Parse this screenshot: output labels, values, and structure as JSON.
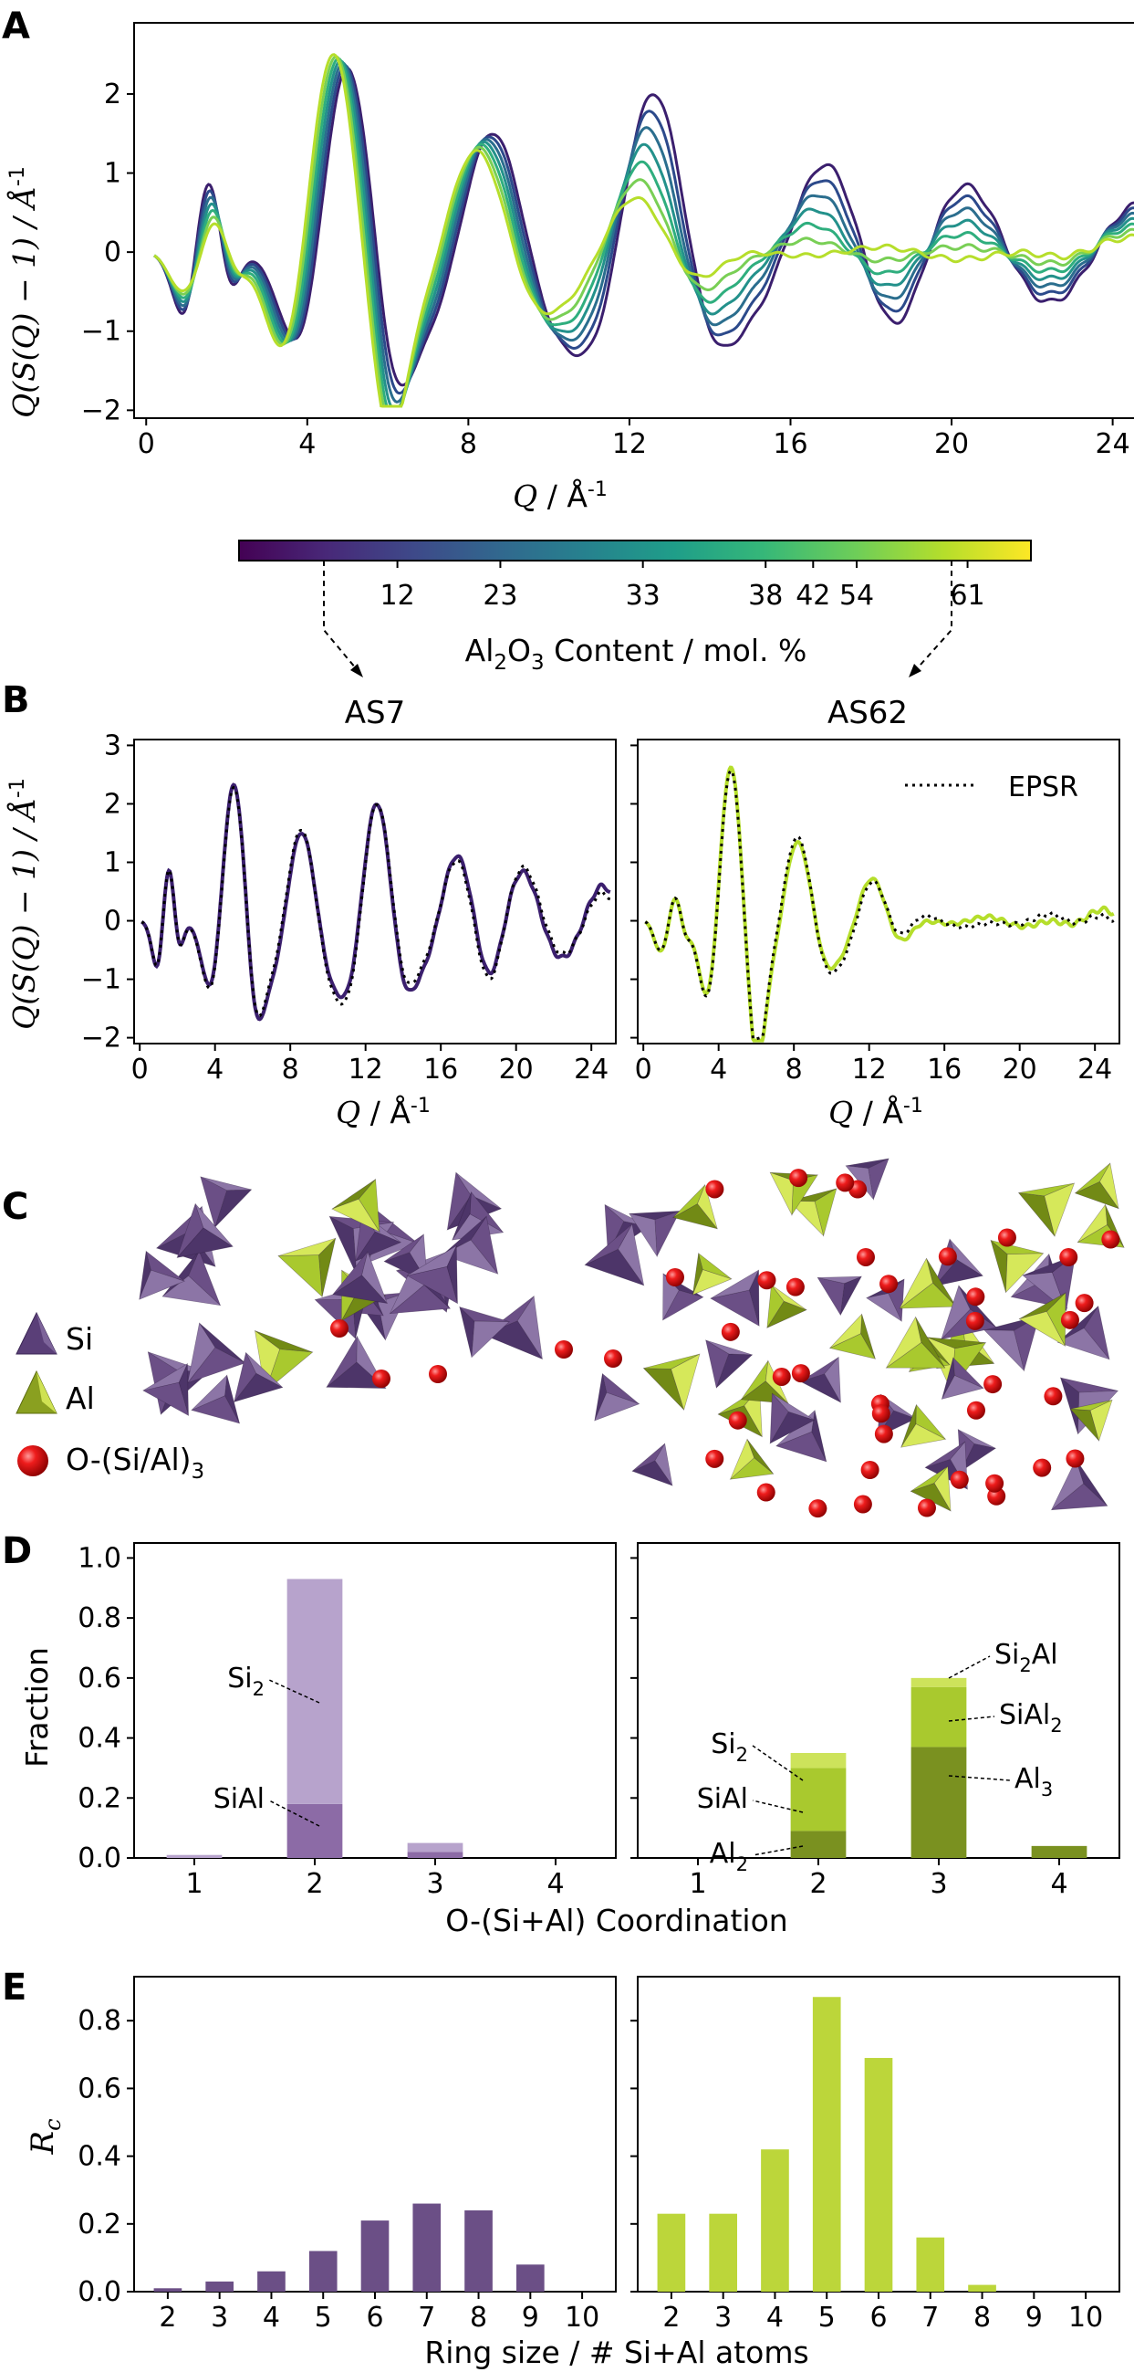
{
  "panels": {
    "a": {
      "letter": "A"
    },
    "b": {
      "letter": "B",
      "left_title": "AS7",
      "right_title": "AS62"
    },
    "c": {
      "letter": "C"
    },
    "d": {
      "letter": "D"
    },
    "e": {
      "letter": "E"
    }
  },
  "colorbar": {
    "ticks": [
      "12",
      "23",
      "33",
      "38",
      "42",
      "54",
      "61"
    ],
    "label_pre": "Al",
    "label_sub": "2",
    "label_mid": "O",
    "label_sub2": "3",
    "label_post": " Content / mol. %",
    "colors": [
      "#440154",
      "#482878",
      "#3e4989",
      "#31688e",
      "#26828e",
      "#1f9e89",
      "#35b779",
      "#6ece58",
      "#b5de2b",
      "#fde725"
    ]
  },
  "legend_c": {
    "si": "Si",
    "al": "Al",
    "o_pre": "O-(Si/Al)",
    "o_sub": "3",
    "si_color": "#6b4f86",
    "al_color": "#bcd63a",
    "o_color": "#e01010"
  },
  "chart_data": [
    {
      "panel": "A",
      "type": "line",
      "xlabel": "Q / Å-1",
      "ylabel": "Q(S(Q) − 1) / Å-1",
      "xlim": [
        -0.3,
        25.3
      ],
      "ylim": [
        -2.1,
        2.9
      ],
      "xticks": [
        "0",
        "4",
        "8",
        "12",
        "16",
        "20",
        "24"
      ],
      "yticks": [
        "−2",
        "−1",
        "0",
        "1",
        "2"
      ],
      "series_colors": [
        "#3b1f6e",
        "#2c4a8b",
        "#2b6e8e",
        "#23918b",
        "#2fae7e",
        "#79cf55",
        "#b6de2b"
      ],
      "series_compositions_mol_pct": [
        7,
        12,
        23,
        33,
        42,
        54,
        62
      ],
      "peaks_q": [
        1.5,
        4.7,
        8.3,
        12.4,
        16.8,
        20.4,
        24.6
      ]
    },
    {
      "panel": "B-left",
      "type": "line",
      "title": "AS7",
      "xlabel": "Q / Å-1",
      "ylabel": "Q(S(Q) − 1) / Å-1",
      "xlim": [
        -0.3,
        25.3
      ],
      "ylim": [
        -2.1,
        3.1
      ],
      "xticks": [
        "0",
        "4",
        "8",
        "12",
        "16",
        "20",
        "24"
      ],
      "yticks": [
        "−2",
        "−1",
        "0",
        "1",
        "2",
        "3"
      ],
      "series": [
        {
          "name": "",
          "color": "#3b1f6e"
        },
        {
          "name": "EPSR",
          "style": "dotted"
        }
      ]
    },
    {
      "panel": "B-right",
      "type": "line",
      "title": "AS62",
      "xlabel": "Q / Å-1",
      "xlim": [
        -0.3,
        25.3
      ],
      "ylim": [
        -2.1,
        3.1
      ],
      "xticks": [
        "0",
        "4",
        "8",
        "12",
        "16",
        "20",
        "24"
      ],
      "legend": "EPSR",
      "series": [
        {
          "name": "",
          "color": "#b5de2b"
        },
        {
          "name": "EPSR",
          "style": "dotted"
        }
      ]
    },
    {
      "panel": "D-left",
      "type": "bar",
      "xlabel": "O-(Si+Al) Coordination",
      "ylabel": "Fraction",
      "categories": [
        "1",
        "2",
        "3",
        "4"
      ],
      "ylim": [
        0,
        1.05
      ],
      "yticks": [
        "0.0",
        "0.2",
        "0.4",
        "0.6",
        "0.8",
        "1.0"
      ],
      "series": [
        {
          "name": "SiAl",
          "values": [
            0.0,
            0.18,
            0.02,
            0.0
          ]
        },
        {
          "name": "Si2",
          "values": [
            0.01,
            0.75,
            0.03,
            0.0
          ]
        }
      ],
      "annotations": [
        {
          "text_pre": "Si",
          "text_sub": "2",
          "text_post": ""
        },
        {
          "text_pre": "SiAl",
          "text_sub": "",
          "text_post": ""
        }
      ]
    },
    {
      "panel": "D-right",
      "type": "bar",
      "categories": [
        "1",
        "2",
        "3",
        "4"
      ],
      "ylim": [
        0,
        1.05
      ],
      "series": [
        {
          "name": "Al2 / Al3",
          "values": [
            0.0,
            0.09,
            0.37,
            0.04
          ]
        },
        {
          "name": "SiAl / SiAl2",
          "values": [
            0.0,
            0.21,
            0.2,
            0.0
          ]
        },
        {
          "name": "Si2 / Si2Al",
          "values": [
            0.0,
            0.05,
            0.03,
            0.0
          ]
        }
      ],
      "annotations": [
        {
          "text_pre": "Si",
          "text_sub": "2",
          "text_post": ""
        },
        {
          "text_pre": "SiAl",
          "text_sub": "",
          "text_post": ""
        },
        {
          "text_pre": "Al",
          "text_sub": "2",
          "text_post": ""
        },
        {
          "text_pre": "Si",
          "text_sub": "2",
          "text_post": "Al"
        },
        {
          "text_pre": "SiAl",
          "text_sub": "2",
          "text_post": ""
        },
        {
          "text_pre": "Al",
          "text_sub": "3",
          "text_post": ""
        }
      ]
    },
    {
      "panel": "E-left",
      "type": "bar",
      "xlabel": "Ring size / # Si+Al atoms",
      "ylabel": "Rc",
      "categories": [
        "2",
        "3",
        "4",
        "5",
        "6",
        "7",
        "8",
        "9",
        "10"
      ],
      "values": [
        0.01,
        0.03,
        0.06,
        0.12,
        0.21,
        0.26,
        0.24,
        0.08,
        0.0
      ],
      "ylim": [
        0,
        0.93
      ],
      "yticks": [
        "0.0",
        "0.2",
        "0.4",
        "0.6",
        "0.8"
      ],
      "color": "#6b4f86"
    },
    {
      "panel": "E-right",
      "type": "bar",
      "categories": [
        "2",
        "3",
        "4",
        "5",
        "6",
        "7",
        "8",
        "9",
        "10"
      ],
      "values": [
        0.23,
        0.23,
        0.42,
        0.87,
        0.69,
        0.16,
        0.02,
        0.0,
        0.0
      ],
      "ylim": [
        0,
        0.93
      ],
      "color": "#bcd63a"
    }
  ],
  "labels": {
    "q_axis_pre": "Q",
    "q_axis_post": " / Å",
    "q_axis_sup": "-1",
    "y_axis_text": "Q(S(Q) − 1) / Å",
    "y_axis_sup": "-1",
    "epsr": "EPSR",
    "fraction": "Fraction",
    "coordination": "O-(Si+Al) Coordination",
    "rc_pre": "R",
    "rc_sub": "c",
    "ring_size": "Ring size / # Si+Al atoms"
  }
}
